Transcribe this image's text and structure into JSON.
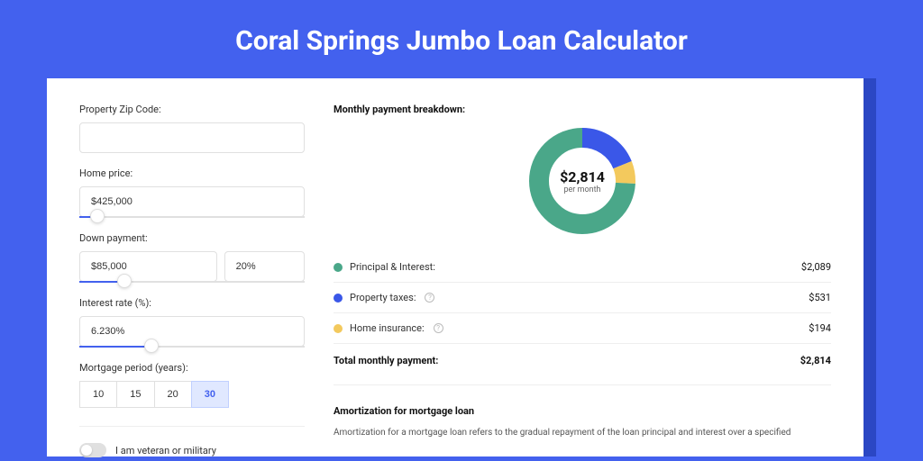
{
  "page": {
    "title": "Coral Springs Jumbo Loan Calculator",
    "background_color": "#4361ee",
    "shadow_color": "#2b47c4",
    "card_bg": "#ffffff"
  },
  "form": {
    "zip": {
      "label": "Property Zip Code:",
      "value": ""
    },
    "home_price": {
      "label": "Home price:",
      "value": "$425,000",
      "slider_pct": 8
    },
    "down_payment": {
      "label": "Down payment:",
      "amount": "$85,000",
      "percent": "20%",
      "slider_pct": 20
    },
    "interest_rate": {
      "label": "Interest rate (%):",
      "value": "6.230%",
      "slider_pct": 32
    },
    "mortgage_period": {
      "label": "Mortgage period (years):",
      "options": [
        "10",
        "15",
        "20",
        "30"
      ],
      "selected_index": 3
    },
    "veteran": {
      "label": "I am veteran or military",
      "checked": false
    }
  },
  "breakdown": {
    "title": "Monthly payment breakdown:",
    "center_value": "$2,814",
    "center_sub": "per month",
    "items": [
      {
        "label": "Principal & Interest:",
        "value": "$2,089",
        "color": "#4aa789",
        "pct": 74.2,
        "has_info": false
      },
      {
        "label": "Property taxes:",
        "value": "$531",
        "color": "#3a57e8",
        "pct": 18.9,
        "has_info": true
      },
      {
        "label": "Home insurance:",
        "value": "$194",
        "color": "#f3c95d",
        "pct": 6.9,
        "has_info": true
      }
    ],
    "total_label": "Total monthly payment:",
    "total_value": "$2,814"
  },
  "donut_style": {
    "radius": 48,
    "stroke_width": 22,
    "bg": "#ffffff"
  },
  "amortization": {
    "title": "Amortization for mortgage loan",
    "text": "Amortization for a mortgage loan refers to the gradual repayment of the loan principal and interest over a specified"
  }
}
